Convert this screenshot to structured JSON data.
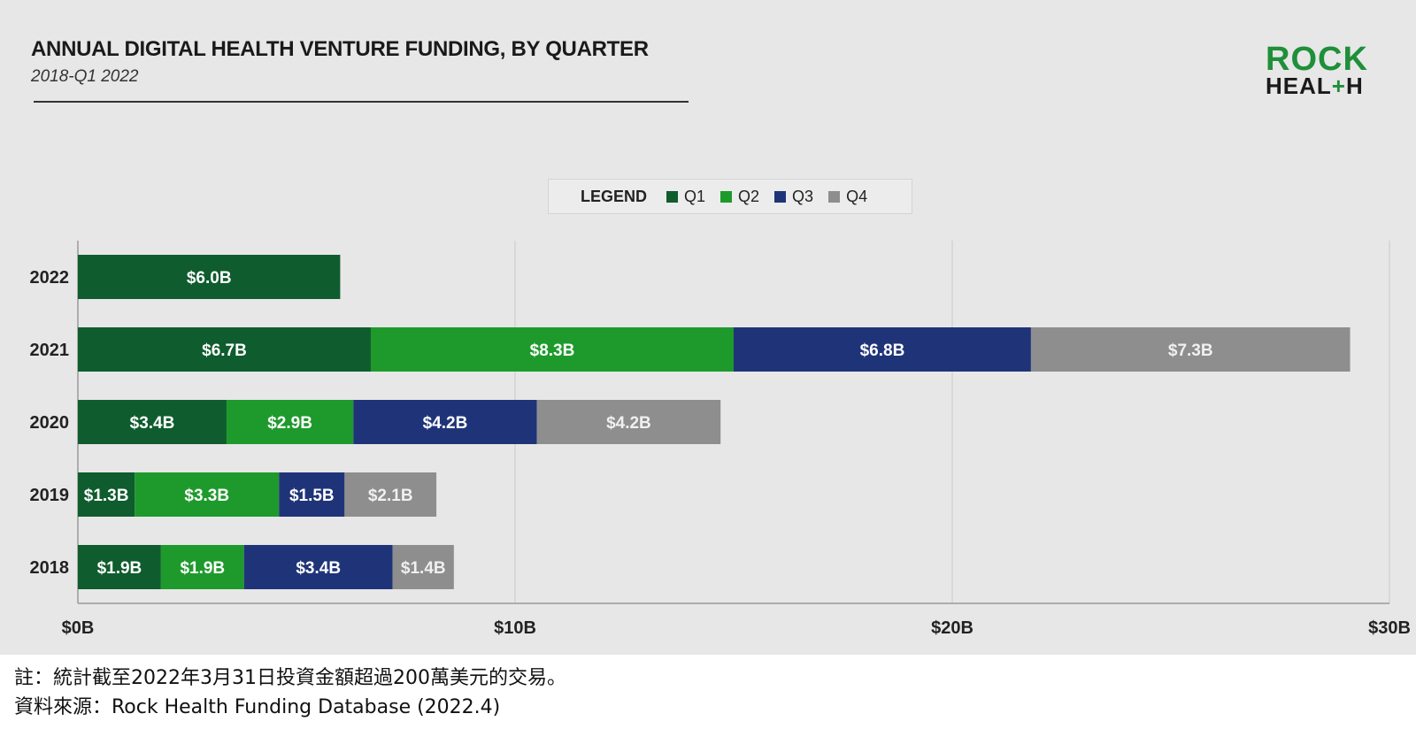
{
  "header": {
    "title": "ANNUAL DIGITAL HEALTH VENTURE FUNDING, BY QUARTER",
    "subtitle": "2018-Q1 2022"
  },
  "logo": {
    "line1": "ROCK",
    "line2_a": "HEAL",
    "line2_plus": "+",
    "line2_b": "H"
  },
  "legend": {
    "title": "LEGEND"
  },
  "colors": {
    "Q1": "#0f5c2e",
    "Q2": "#1e9a2c",
    "Q3": "#1f3478",
    "Q4": "#8e8e8e"
  },
  "chart_data": {
    "type": "bar",
    "orientation": "horizontal",
    "stacked": true,
    "categories": [
      "2022",
      "2021",
      "2020",
      "2019",
      "2018"
    ],
    "series": [
      {
        "name": "Q1",
        "values": [
          6.0,
          6.7,
          3.4,
          1.3,
          1.9
        ],
        "labels": [
          "$6.0B",
          "$6.7B",
          "$3.4B",
          "$1.3B",
          "$1.9B"
        ]
      },
      {
        "name": "Q2",
        "values": [
          0,
          8.3,
          2.9,
          3.3,
          1.9
        ],
        "labels": [
          "",
          "$8.3B",
          "$2.9B",
          "$3.3B",
          "$1.9B"
        ]
      },
      {
        "name": "Q3",
        "values": [
          0,
          6.8,
          4.2,
          1.5,
          3.4
        ],
        "labels": [
          "",
          "$6.8B",
          "$4.2B",
          "$1.5B",
          "$3.4B"
        ]
      },
      {
        "name": "Q4",
        "values": [
          0,
          7.3,
          4.2,
          2.1,
          1.4
        ],
        "labels": [
          "",
          "$7.3B",
          "$4.2B",
          "$2.1B",
          "$1.4B"
        ]
      }
    ],
    "xlim": [
      0,
      30
    ],
    "xticks": [
      0,
      10,
      20,
      30
    ],
    "xtick_labels": [
      "$0B",
      "$10B",
      "$20B",
      "$30B"
    ],
    "grid": true,
    "legend_position": "top-center"
  },
  "notes": {
    "line1": "註：統計截至2022年3月31日投資金額超過200萬美元的交易。",
    "line2": "資料來源：Rock Health Funding Database (2022.4)"
  }
}
